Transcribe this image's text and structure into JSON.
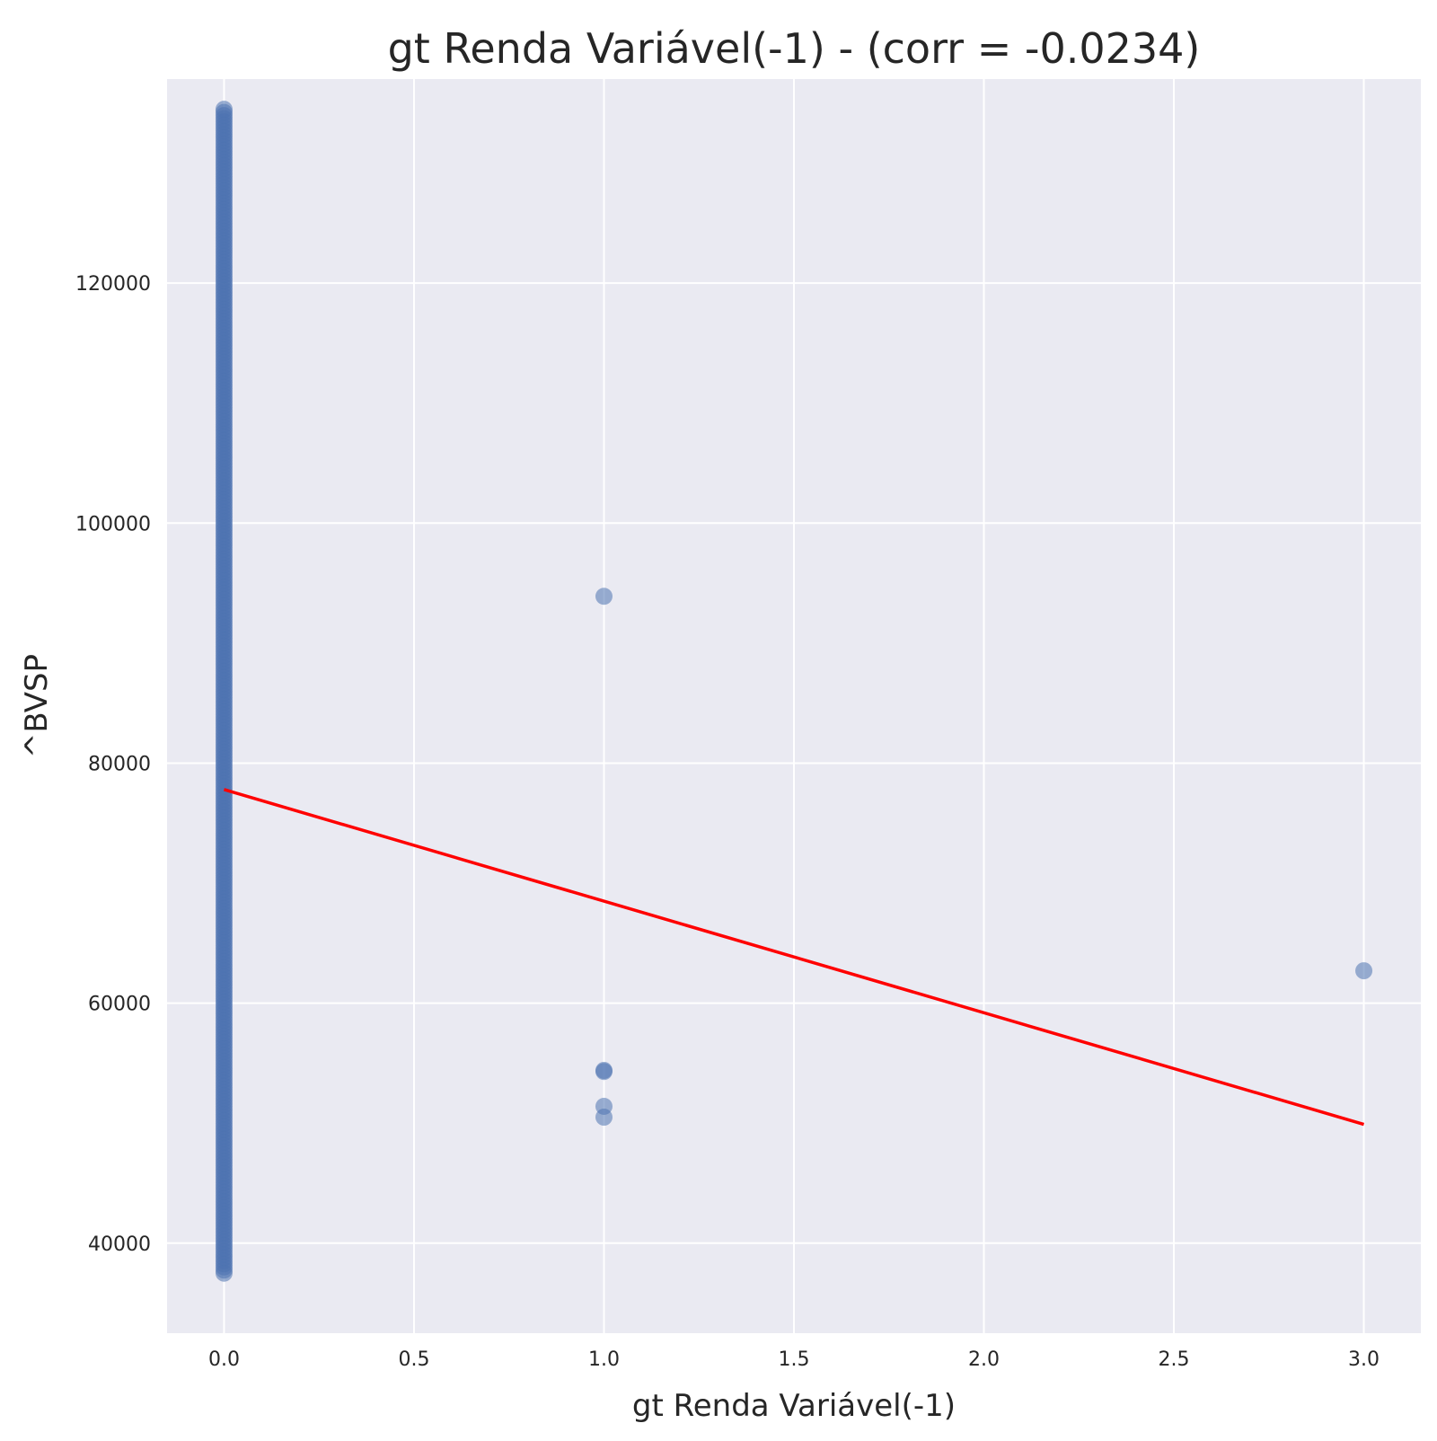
{
  "chart_data": {
    "type": "scatter",
    "title": "gt Renda Variável(-1) - (corr = -0.0234)",
    "xlabel": "gt Renda Variável(-1)",
    "ylabel": "^BVSP",
    "xlim": [
      -0.15,
      3.15
    ],
    "ylim": [
      32500,
      137000
    ],
    "xticks": [
      0.0,
      0.5,
      1.0,
      1.5,
      2.0,
      2.5,
      3.0
    ],
    "xtick_labels": [
      "0.0",
      "0.5",
      "1.0",
      "1.5",
      "2.0",
      "2.5",
      "3.0"
    ],
    "yticks": [
      40000,
      60000,
      80000,
      100000,
      120000
    ],
    "ytick_labels": [
      "40000",
      "60000",
      "80000",
      "100000",
      "120000"
    ],
    "grid": true,
    "background": "#eaeaf2",
    "point_color": "#4c72b0",
    "line_color": "#ff0000",
    "series": [
      {
        "type": "scatter",
        "points": [
          {
            "x": 1.0,
            "y": 93900
          },
          {
            "x": 1.0,
            "y": 54400
          },
          {
            "x": 1.0,
            "y": 54300
          },
          {
            "x": 1.0,
            "y": 51400
          },
          {
            "x": 1.0,
            "y": 50500
          },
          {
            "x": 3.0,
            "y": 62700
          }
        ],
        "dense_column": {
          "x": 0.0,
          "y_min": 37500,
          "y_max": 134500
        }
      },
      {
        "type": "line",
        "x": [
          0.0,
          3.0
        ],
        "y": [
          77800,
          49900
        ]
      }
    ]
  }
}
